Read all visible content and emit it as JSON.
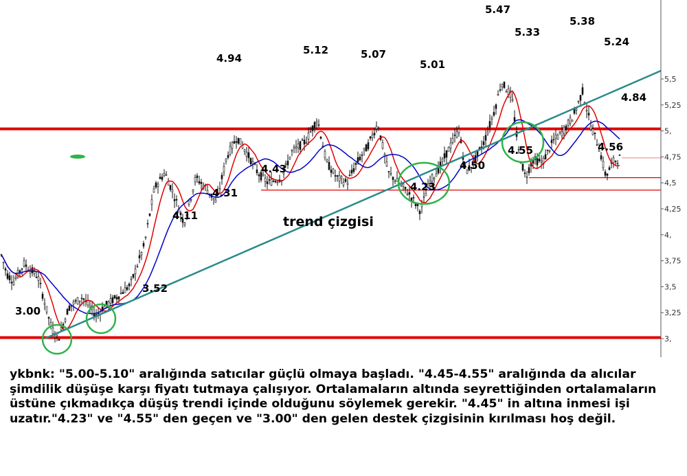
{
  "chart_data": {
    "type": "candlestick",
    "y_axis": {
      "position": "right",
      "range": [
        2.95,
        5.55
      ],
      "ticks": [
        "3,",
        "3,25",
        "3,5",
        "3,75",
        "4,",
        "4,25",
        "4,5",
        "4,75",
        "5,",
        "5,25",
        "5,5"
      ]
    },
    "price_levels": [
      {
        "label": "5.47"
      },
      {
        "label": "5.38"
      },
      {
        "label": "5.33"
      },
      {
        "label": "5.24"
      },
      {
        "label": "5.12"
      },
      {
        "label": "5.07"
      },
      {
        "label": "5.01"
      },
      {
        "label": "4.94"
      },
      {
        "label": "4.84"
      },
      {
        "label": "4.56"
      },
      {
        "label": "4.55"
      },
      {
        "label": "4.50"
      },
      {
        "label": "4.43"
      },
      {
        "label": "4.31"
      },
      {
        "label": "4.23"
      },
      {
        "label": "4.11"
      },
      {
        "label": "3.52"
      },
      {
        "label": "3.00"
      }
    ],
    "horizontal_lines": [
      {
        "level": 5.02,
        "color": "#e00000",
        "kind": "resistance-thick"
      },
      {
        "level": 3.01,
        "color": "#e00000",
        "kind": "support-thick"
      },
      {
        "level": 4.55,
        "color": "#e00000",
        "kind": "support-thin"
      },
      {
        "level": 4.43,
        "color": "#e00000",
        "kind": "support-thin"
      },
      {
        "level": 4.74,
        "color": "#e88080",
        "kind": "last-price"
      }
    ],
    "trendline": {
      "label": "trend çizgisi",
      "color": "#2a8a8a",
      "from": 3.0,
      "to": 5.08
    },
    "moving_averages": [
      {
        "color": "#e00000"
      },
      {
        "color": "#0000cc"
      }
    ],
    "circles_color": "#2db34a",
    "marker_color": "#2db34a"
  },
  "commentary": "ykbnk: \"5.00-5.10\" aralığında satıcılar güçlü olmaya başladı. \"4.45-4.55\" aralığında da alıcılar şimdilik düşüşe karşı fiyatı tutmaya çalışıyor. Ortalamaların altında seyrettiğinden ortalamaların üstüne çıkmadıkça düşüş trendi içinde olduğunu söylemek gerekir. \"4.45\" in altına inmesi işi uzatır.\"4.23\" ve \"4.55\" den geçen ve \"3.00\" den gelen destek çizgisinin kırılması hoş değil."
}
